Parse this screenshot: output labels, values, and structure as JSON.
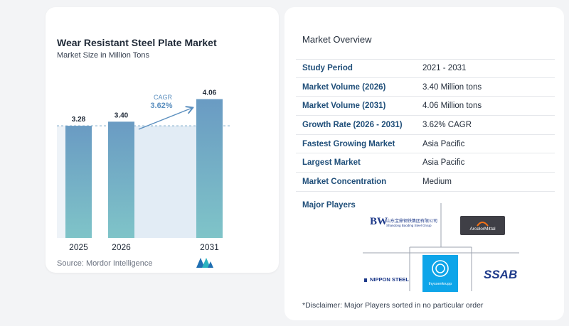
{
  "chart_data": {
    "type": "bar",
    "title": "Wear Resistant Steel Plate Market",
    "subtitle": "Market Size in Million Tons",
    "categories": [
      "2025",
      "2026",
      "2031"
    ],
    "values": [
      3.28,
      3.4,
      4.06
    ],
    "value_labels": [
      "3.28",
      "3.40",
      "4.06"
    ],
    "cagr_label": "CAGR",
    "cagr_value": "3.62%",
    "bar_color": "#6a9bc3",
    "bar_color_bottom": "#7fc4c8",
    "ylim": [
      0,
      4.3
    ]
  },
  "source": "Source:  Mordor Intelligence",
  "overview": {
    "title": "Market Overview",
    "rows": [
      {
        "label": "Study Period",
        "value": "2021 - 2031"
      },
      {
        "label": "Market Volume (2026)",
        "value": "3.40 Million tons"
      },
      {
        "label": "Market Volume (2031)",
        "value": "4.06 Million tons"
      },
      {
        "label": "Growth Rate (2026 - 2031)",
        "value": "3.62% CAGR"
      },
      {
        "label": "Fastest Growing Market",
        "value": "Asia Pacific"
      },
      {
        "label": "Largest Market",
        "value": "Asia Pacific"
      },
      {
        "label": "Market Concentration",
        "value": "Medium"
      }
    ]
  },
  "players": {
    "title": "Major Players",
    "logos": {
      "bw_mark": "BW",
      "bw_cn": "山东宝鼎钢铁集团有限公司",
      "bw_sub": "Shandong Baoding Steel Group",
      "arcelor": "ArcelorMittal",
      "nippon": "NIPPON STEEL",
      "thyssen": "thyssenkrupp",
      "ssab": "SSAB"
    }
  },
  "disclaimer": "*Disclaimer: Major Players sorted in no particular order"
}
